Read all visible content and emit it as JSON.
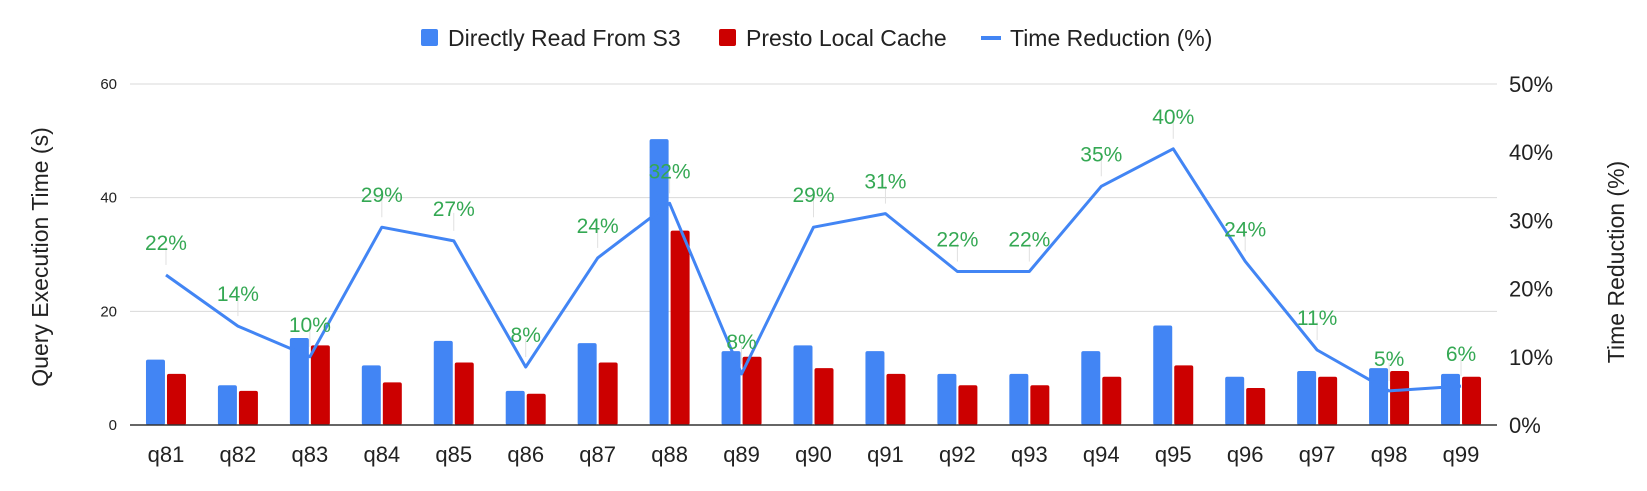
{
  "chart_data": {
    "type": "bar",
    "categories": [
      "q81",
      "q82",
      "q83",
      "q84",
      "q85",
      "q86",
      "q87",
      "q88",
      "q89",
      "q90",
      "q91",
      "q92",
      "q93",
      "q94",
      "q95",
      "q96",
      "q97",
      "q98",
      "q99"
    ],
    "series": [
      {
        "name": "Directly Read From S3",
        "type": "bar",
        "axis": "left",
        "color": "#4285F4",
        "values": [
          11.5,
          7,
          15.3,
          10.5,
          14.8,
          6,
          14.4,
          50.3,
          13,
          14,
          13,
          9,
          9,
          13,
          17.5,
          8.5,
          9.5,
          10,
          9
        ]
      },
      {
        "name": "Presto Local Cache",
        "type": "bar",
        "axis": "left",
        "color": "#CC0000",
        "values": [
          9,
          6,
          14,
          7.5,
          11,
          5.5,
          11,
          34.2,
          12,
          10,
          9,
          7,
          7,
          8.5,
          10.5,
          6.5,
          8.5,
          9.5,
          8.5
        ]
      },
      {
        "name": "Time Reduction (%)",
        "type": "line",
        "axis": "right",
        "color": "#4285F4",
        "values": [
          22,
          14.5,
          10,
          29,
          27,
          8.5,
          24.5,
          32.5,
          7.5,
          29,
          31,
          22.5,
          22.5,
          35,
          40.5,
          24,
          11,
          5,
          5.7
        ]
      }
    ],
    "data_labels": [
      "22%",
      "14%",
      "10%",
      "29%",
      "27%",
      "8%",
      "24%",
      "32%",
      "8%",
      "29%",
      "31%",
      "22%",
      "22%",
      "35%",
      "40%",
      "24%",
      "11%",
      "5%",
      "6%"
    ],
    "data_label_color": "#34A853",
    "ylabel": "Query Execution Time (s)",
    "ylabel_right": "Time Reduction (%)",
    "ylim": [
      0,
      60
    ],
    "yticks": [
      "0",
      "20",
      "40",
      "60"
    ],
    "ylim_right": [
      0,
      50
    ],
    "yticks_right": [
      "0%",
      "10%",
      "20%",
      "30%",
      "40%",
      "50%"
    ],
    "legend_position": "top",
    "grid": true
  }
}
